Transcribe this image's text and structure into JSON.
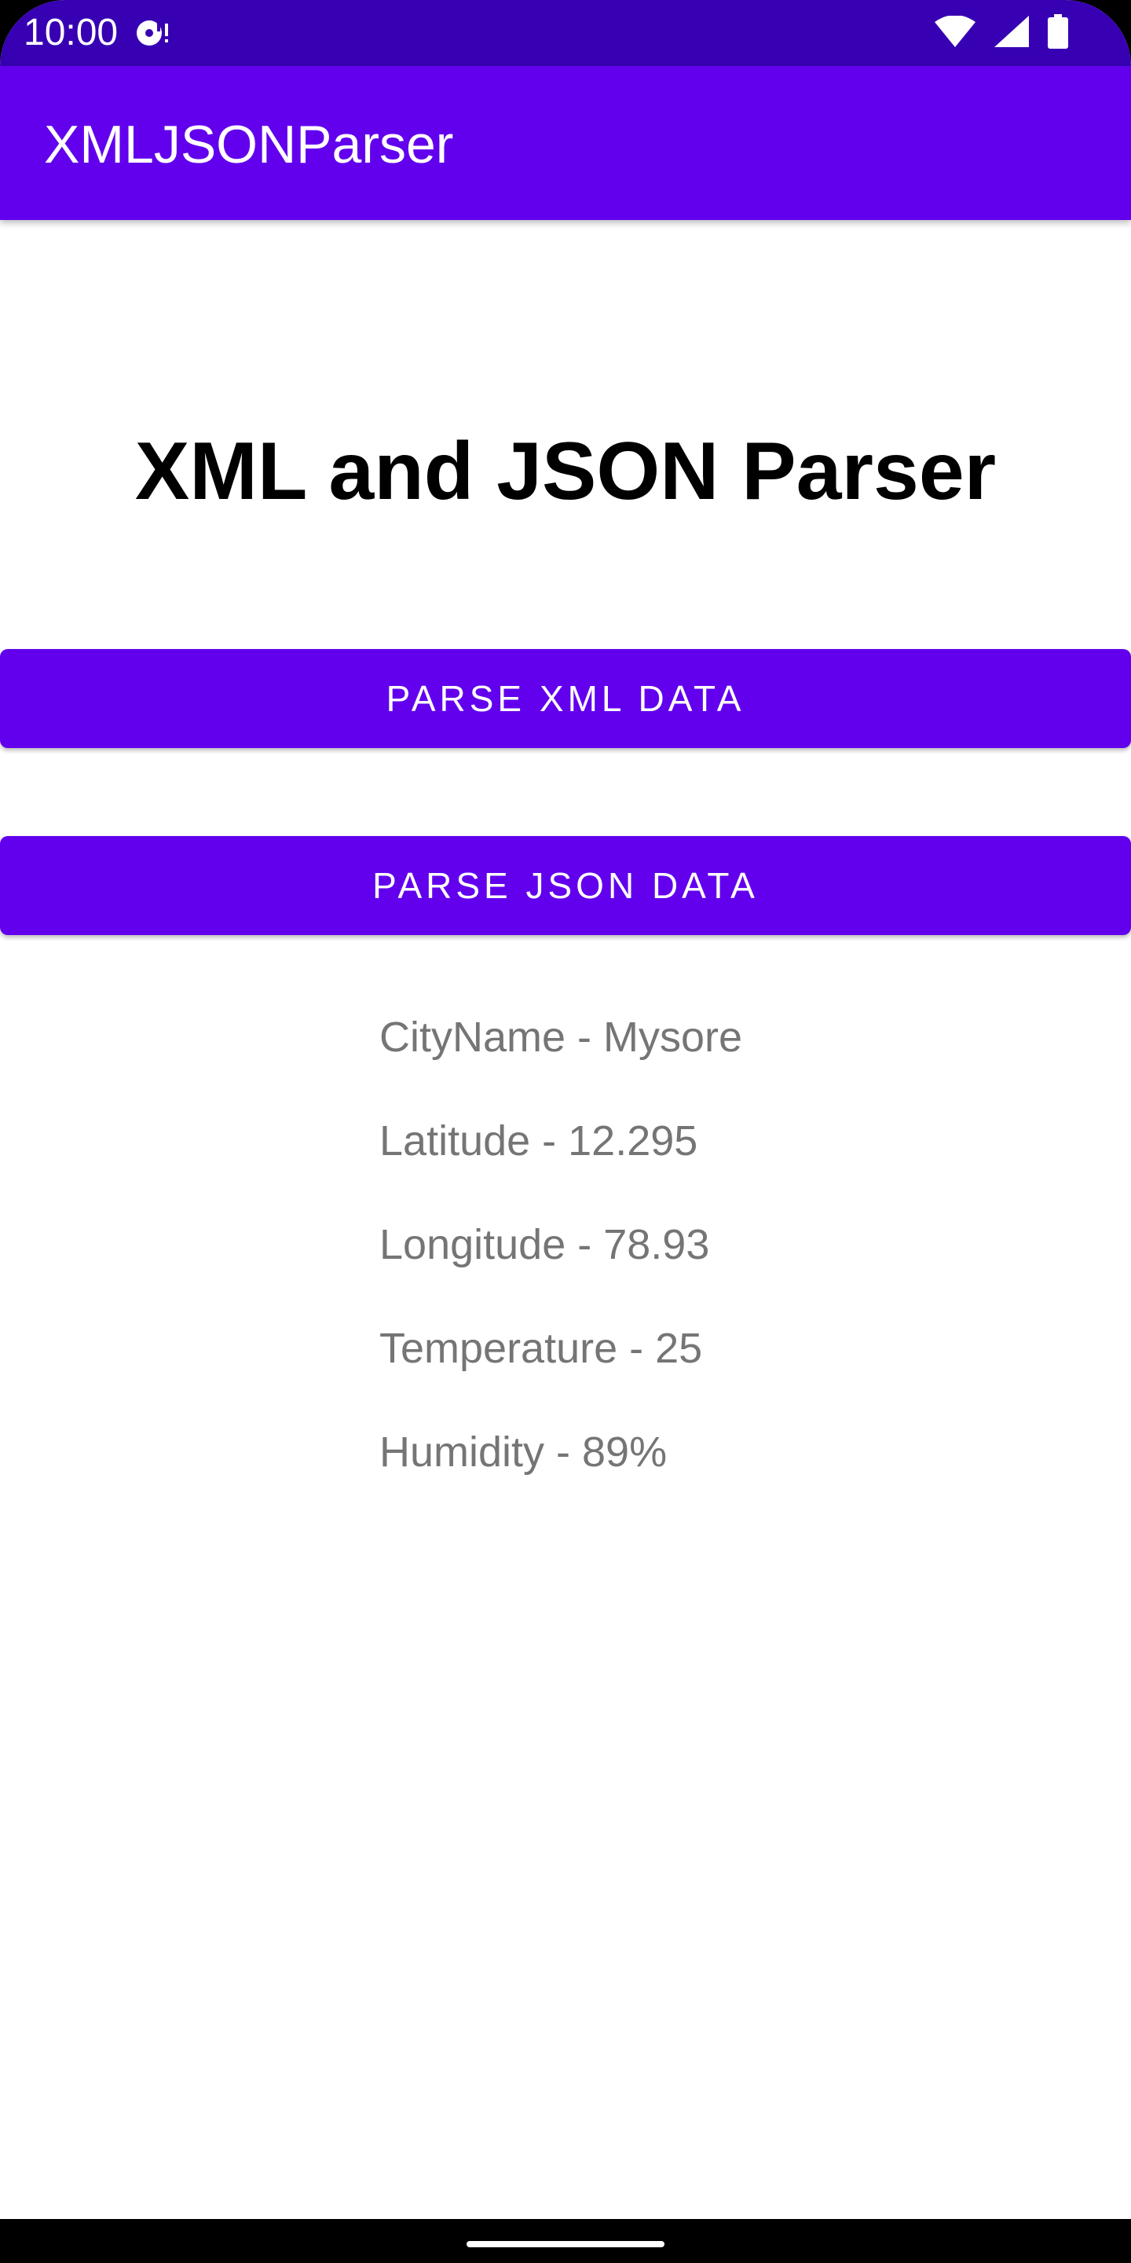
{
  "status_bar": {
    "time": "10:00",
    "background": "#3700B3",
    "icons": [
      "media-notification-icon",
      "wifi-icon",
      "cellular-signal-icon",
      "battery-icon"
    ]
  },
  "app_bar": {
    "title": "XMLJSONParser",
    "background": "#6200EE"
  },
  "main": {
    "heading": "XML and JSON Parser",
    "buttons": {
      "parse_xml": "PARSE XML DATA",
      "parse_json": "PARSE JSON DATA"
    },
    "results": [
      "CityName - Mysore",
      "Latitude - 12.295",
      "Longitude - 78.93",
      "Temperature - 25",
      "Humidity - 89%"
    ]
  },
  "colors": {
    "primary": "#6200EE",
    "primary_dark": "#3700B3",
    "result_text": "#757575"
  }
}
